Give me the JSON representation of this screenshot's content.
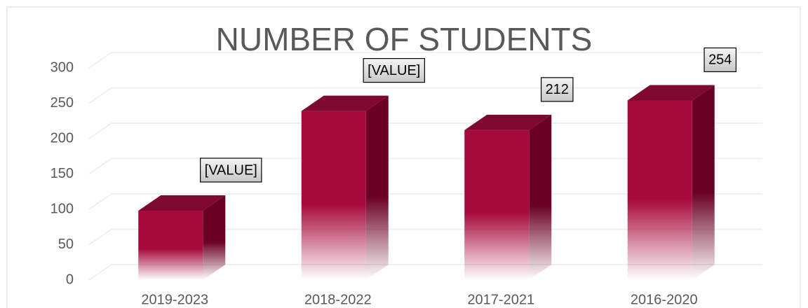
{
  "chart_data": {
    "type": "bar3d",
    "title": "NUMBER OF STUDENTS",
    "categories": [
      "2019-2023",
      "2018-2022",
      "2017-2021",
      "2016-2020"
    ],
    "values": [
      98,
      239,
      212,
      254
    ],
    "value_labels": [
      "[VALUE]",
      "[VALUE]",
      "212",
      "254"
    ],
    "color": "#a6093c",
    "ylim": [
      0,
      300
    ],
    "yticks": [
      0,
      50,
      100,
      150,
      200,
      250,
      300
    ],
    "grid": true
  }
}
